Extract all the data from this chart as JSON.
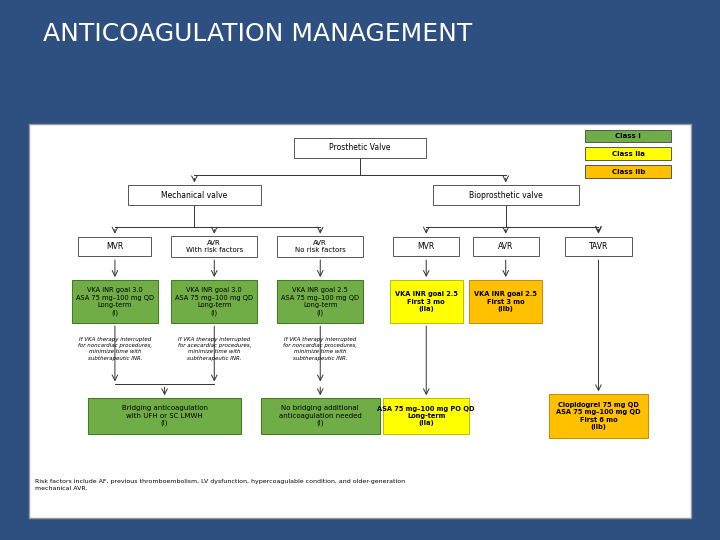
{
  "title": "ANTICOAGULATION MANAGEMENT",
  "title_color": "#ffffff",
  "title_fontsize": 18,
  "bg_color": "#2d5080",
  "panel_bg": "#ffffff",
  "green_color": "#70ad47",
  "yellow_color": "#ffff00",
  "orange_color": "#ffc000",
  "legend": [
    {
      "label": "Class I",
      "color": "#70ad47"
    },
    {
      "label": "Class IIa",
      "color": "#ffff00"
    },
    {
      "label": "Class IIb",
      "color": "#ffc000"
    }
  ],
  "footnote": "Risk factors include AF, previous thromboembolism, LV dysfunction, hypercoagulable condition, and older-generation\nmechanical AVR."
}
